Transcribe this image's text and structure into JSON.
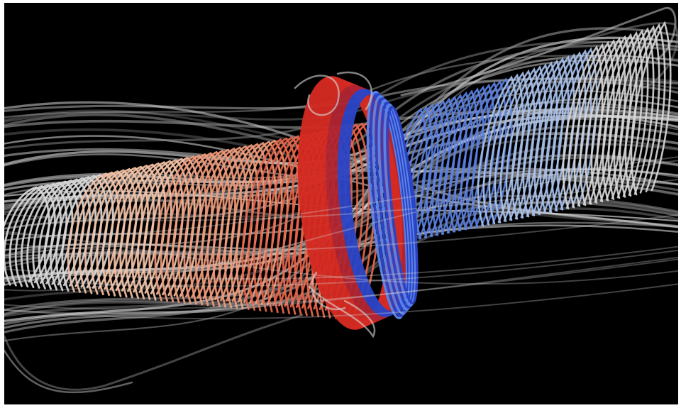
{
  "scene": {
    "background_color": "#000000",
    "page_color": "#ffffff",
    "colors": {
      "red_strong": "#d42a22",
      "red_mid": "#e8654a",
      "salmon": "#f09a7a",
      "peach": "#f3c2a6",
      "blue_strong": "#2b44c6",
      "blue_mid": "#5b82e6",
      "blue_light": "#a9c2ee",
      "white_gray": "#d8d8d8",
      "gray_dim": "#8a8a8a"
    },
    "icons": [
      "streamline-tube-render"
    ]
  }
}
